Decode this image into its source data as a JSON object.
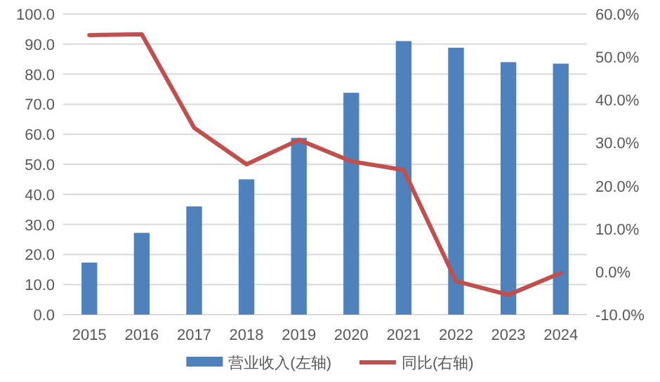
{
  "chart_data": {
    "type": "bar",
    "categories": [
      "2015",
      "2016",
      "2017",
      "2018",
      "2019",
      "2020",
      "2021",
      "2022",
      "2023",
      "2024"
    ],
    "series": [
      {
        "name": "营业收入(左轴)",
        "color": "#4f81bd",
        "values": [
          17.3,
          27.2,
          36.0,
          45.0,
          58.8,
          73.8,
          91.0,
          88.8,
          84.0,
          83.5
        ]
      },
      {
        "name": "同比(右轴)",
        "type": "line",
        "axis": "y2",
        "color": "#c0504d",
        "values": [
          55.1,
          55.3,
          33.5,
          25.0,
          30.7,
          25.7,
          23.7,
          -2.2,
          -5.4,
          -0.3
        ]
      }
    ],
    "ylim": [
      0,
      100
    ],
    "yticks": [
      {
        "value": 0,
        "label": "0.0"
      },
      {
        "value": 10,
        "label": "10.0"
      },
      {
        "value": 20,
        "label": "20.0"
      },
      {
        "value": 30,
        "label": "30.0"
      },
      {
        "value": 40,
        "label": "40.0"
      },
      {
        "value": 50,
        "label": "50.0"
      },
      {
        "value": 60,
        "label": "60.0"
      },
      {
        "value": 70,
        "label": "70.0"
      },
      {
        "value": 80,
        "label": "80.0"
      },
      {
        "value": 90,
        "label": "90.0"
      },
      {
        "value": 100,
        "label": "100.0"
      }
    ],
    "y2lim": [
      -10,
      60
    ],
    "y2ticks": [
      {
        "value": -10,
        "label": "-10.0%"
      },
      {
        "value": 0,
        "label": "0.0%"
      },
      {
        "value": 10,
        "label": "10.0%"
      },
      {
        "value": 20,
        "label": "20.0%"
      },
      {
        "value": 30,
        "label": "30.0%"
      },
      {
        "value": 40,
        "label": "40.0%"
      },
      {
        "value": 50,
        "label": "50.0%"
      },
      {
        "value": 60,
        "label": "60.0%"
      }
    ],
    "grid": "y",
    "legend": "bottom",
    "marker": "none",
    "line_style": "solid"
  }
}
